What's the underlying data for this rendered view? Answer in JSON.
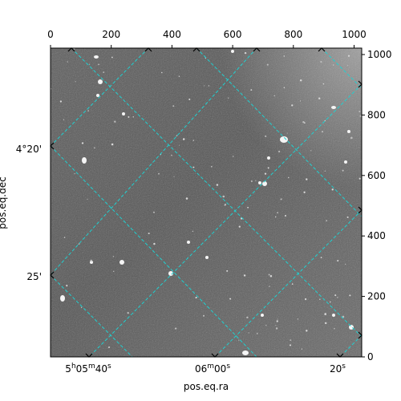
{
  "figure": {
    "xlabel": "pos.eq.ra",
    "ylabel": "pos.eq.dec",
    "x_pixel_ticks": [
      "0",
      "200",
      "400",
      "600",
      "800",
      "1000"
    ],
    "y_pixel_ticks": [
      "0",
      "200",
      "400",
      "600",
      "800",
      "1000"
    ],
    "ra_ticks": [
      {
        "h": "5",
        "hs": "h",
        "m": "05",
        "ms": "m",
        "s": "40",
        "ss": "s"
      },
      {
        "h": "",
        "hs": "",
        "m": "06",
        "ms": "m",
        "s": "00",
        "ss": "s"
      },
      {
        "h": "",
        "hs": "",
        "m": "",
        "ms": "",
        "s": "20",
        "ss": "s"
      }
    ],
    "dec_ticks": [
      "4°20'",
      "25'"
    ],
    "grid_color": "#20d0d0",
    "image_background": "#6e6e6e"
  }
}
